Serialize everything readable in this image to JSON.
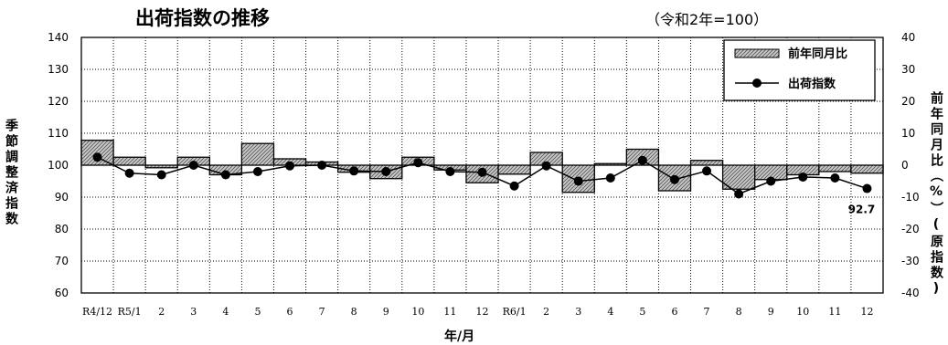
{
  "chart_data": {
    "type": "bar",
    "title": "出荷指数の推移",
    "subtitle": "（令和2年=100）",
    "xlabel": "年/月",
    "ylabel": "季節調整済指数",
    "y2label": "前年同月比（%）(原指数)",
    "ylim": [
      60,
      140
    ],
    "y2lim": [
      -40,
      40
    ],
    "yticks": [
      60,
      70,
      80,
      90,
      100,
      110,
      120,
      130,
      140
    ],
    "y2ticks": [
      "-40",
      "-30",
      "-20",
      "-10",
      "0",
      "10",
      "20",
      "30",
      "40"
    ],
    "categories": [
      "R4/12",
      "R5/1",
      "2",
      "3",
      "4",
      "5",
      "6",
      "7",
      "8",
      "9",
      "10",
      "11",
      "12",
      "R6/1",
      "2",
      "3",
      "4",
      "5",
      "6",
      "7",
      "8",
      "9",
      "10",
      "11",
      "12"
    ],
    "series": [
      {
        "name": "前年同月比",
        "axis": "right",
        "type": "bar",
        "values": [
          7.8,
          2.5,
          -0.8,
          2.5,
          -3.0,
          6.8,
          2.0,
          1.0,
          -2.2,
          -4.2,
          2.5,
          -1.5,
          -5.5,
          -2.8,
          4.0,
          -8.5,
          0.5,
          5.0,
          -8.0,
          1.5,
          -7.5,
          -4.5,
          -3.0,
          -2.0,
          -2.5
        ]
      },
      {
        "name": "出荷指数",
        "axis": "left",
        "type": "line",
        "values": [
          102.5,
          97.5,
          97.0,
          100.0,
          97.0,
          98.0,
          99.8,
          100.0,
          98.2,
          98.0,
          100.8,
          98.0,
          97.8,
          93.5,
          99.8,
          95.0,
          96.0,
          101.5,
          95.5,
          98.2,
          91.0,
          95.0,
          96.3,
          96.0,
          92.7
        ]
      }
    ],
    "annotations": [
      {
        "text": "92.7",
        "index": 24
      }
    ],
    "legend_position": "top-right",
    "grid": true
  }
}
